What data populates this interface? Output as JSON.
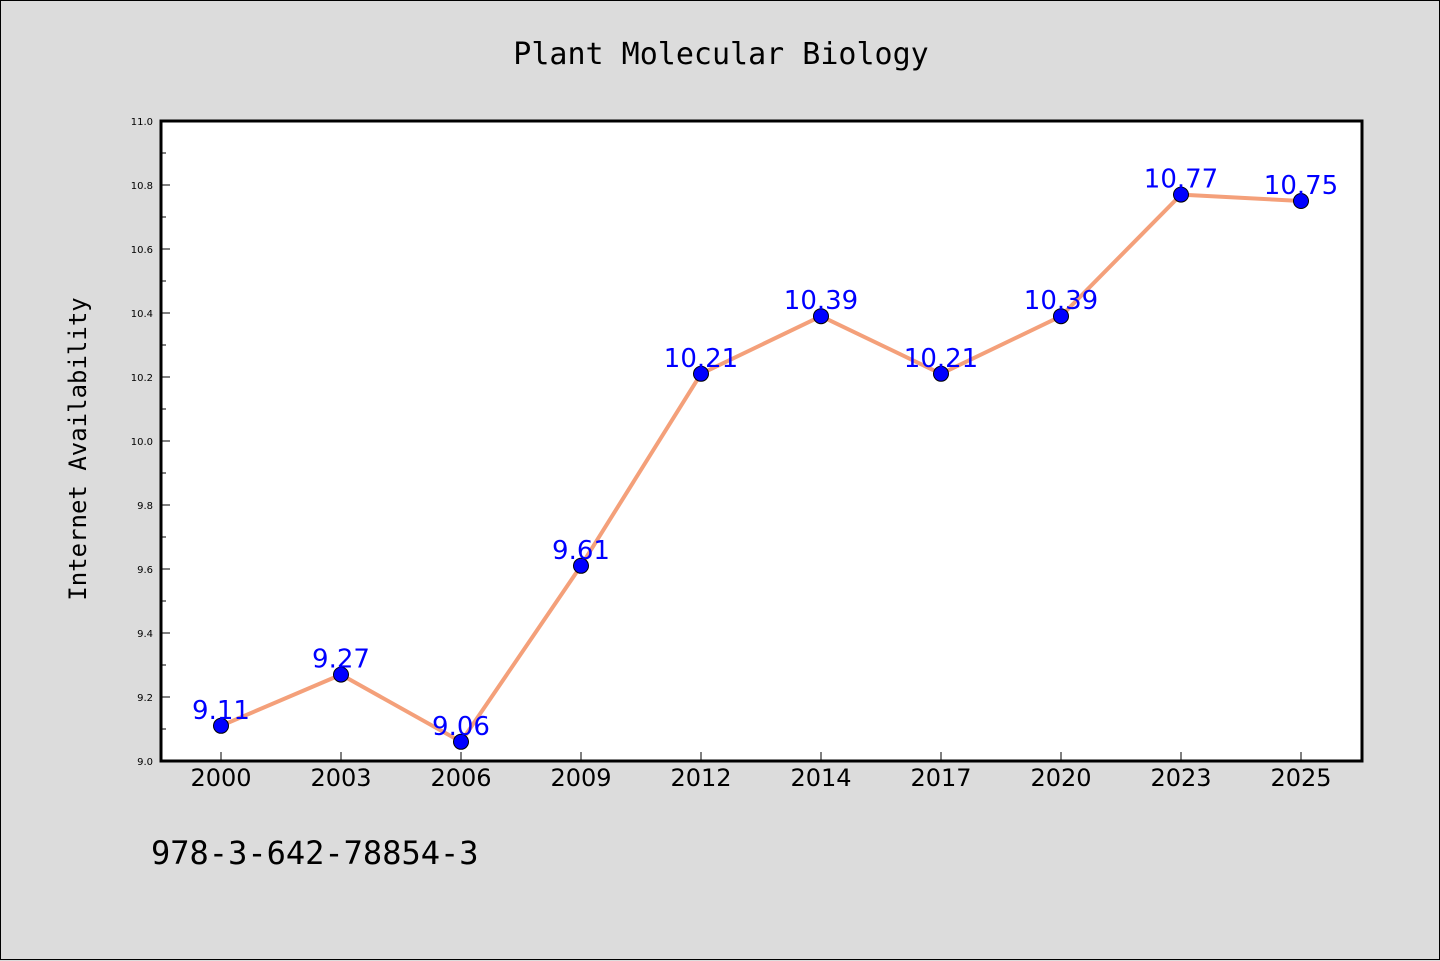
{
  "chart_data": {
    "type": "line",
    "title": "Plant Molecular Biology",
    "xlabel": "",
    "ylabel": "Internet Availability",
    "categories": [
      "2000",
      "2003",
      "2006",
      "2009",
      "2012",
      "2014",
      "2017",
      "2020",
      "2023",
      "2025"
    ],
    "values": [
      9.11,
      9.27,
      9.06,
      9.61,
      10.21,
      10.39,
      10.21,
      10.39,
      10.77,
      10.75
    ],
    "data_labels": [
      "9.11",
      "9.27",
      "9.06",
      "9.61",
      "10.21",
      "10.39",
      "10.21",
      "10.39",
      "10.77",
      "10.75"
    ],
    "ylim": [
      9.0,
      11.0
    ],
    "y_ticks": [
      "9.0",
      "9.2",
      "9.4",
      "9.6",
      "9.8",
      "10.0",
      "10.2",
      "10.4",
      "10.6",
      "10.8",
      "11.0"
    ],
    "grid": false,
    "colors": {
      "line": "#f4a07a",
      "marker": "#0000ff",
      "marker_edge": "#000000",
      "data_label": "#0000ff",
      "plot_background": "#ffffff",
      "figure_background": "#dcdcdc"
    }
  },
  "footer": {
    "isbn": "978-3-642-78854-3"
  }
}
